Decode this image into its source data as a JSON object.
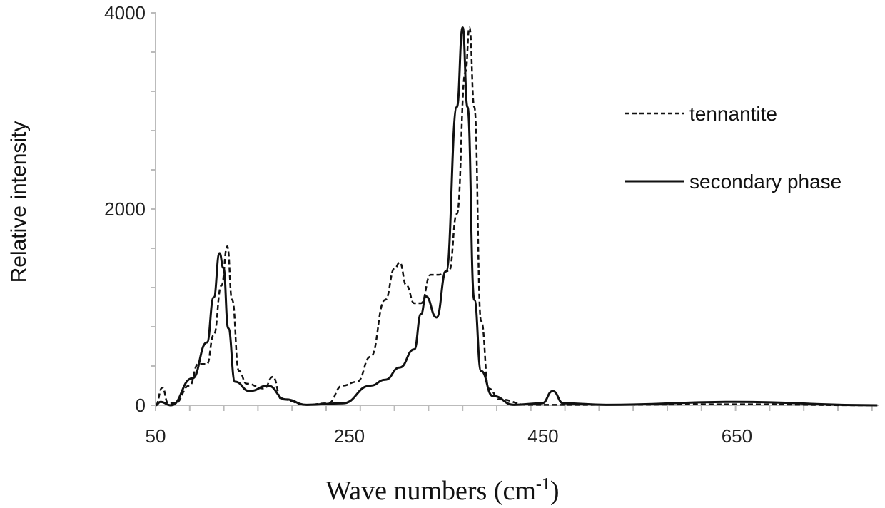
{
  "chart_data": {
    "type": "line",
    "title": "",
    "xlabel": "Wave numbers (cm",
    "xlabel_sup": "-1",
    "xlabel_close": ")",
    "ylabel": "Relative intensity",
    "xlim": [
      50,
      800
    ],
    "ylim": [
      0,
      4000
    ],
    "xticks": [
      50,
      250,
      450,
      650
    ],
    "yticks": [
      0,
      2000,
      4000
    ],
    "legend_position": "right",
    "grid": false,
    "series": [
      {
        "name": "tennantite",
        "style": "dashed",
        "points": [
          [
            50,
            0
          ],
          [
            57,
            180
          ],
          [
            63,
            20
          ],
          [
            70,
            20
          ],
          [
            85,
            200
          ],
          [
            94,
            420
          ],
          [
            103,
            420
          ],
          [
            110,
            715
          ],
          [
            118,
            1220
          ],
          [
            124,
            1620
          ],
          [
            129,
            1075
          ],
          [
            136,
            350
          ],
          [
            144,
            220
          ],
          [
            162,
            170
          ],
          [
            171,
            290
          ],
          [
            180,
            60
          ],
          [
            206,
            5
          ],
          [
            228,
            20
          ],
          [
            243,
            200
          ],
          [
            258,
            240
          ],
          [
            272,
            495
          ],
          [
            287,
            1075
          ],
          [
            297,
            1400
          ],
          [
            302,
            1455
          ],
          [
            309,
            1220
          ],
          [
            317,
            1040
          ],
          [
            324,
            1040
          ],
          [
            334,
            1330
          ],
          [
            342,
            1330
          ],
          [
            353,
            1370
          ],
          [
            361,
            1950
          ],
          [
            370,
            3400
          ],
          [
            374,
            3850
          ],
          [
            379,
            3040
          ],
          [
            386,
            860
          ],
          [
            394,
            170
          ],
          [
            405,
            60
          ],
          [
            434,
            5
          ],
          [
            500,
            5
          ],
          [
            650,
            10
          ],
          [
            795,
            0
          ]
        ]
      },
      {
        "name": "secondary phase",
        "style": "solid",
        "points": [
          [
            50,
            0
          ],
          [
            55,
            35
          ],
          [
            66,
            0
          ],
          [
            88,
            275
          ],
          [
            103,
            640
          ],
          [
            110,
            1100
          ],
          [
            116,
            1550
          ],
          [
            120,
            1400
          ],
          [
            125,
            785
          ],
          [
            132,
            240
          ],
          [
            147,
            145
          ],
          [
            166,
            200
          ],
          [
            184,
            60
          ],
          [
            206,
            5
          ],
          [
            243,
            20
          ],
          [
            272,
            200
          ],
          [
            287,
            260
          ],
          [
            302,
            385
          ],
          [
            317,
            570
          ],
          [
            324,
            930
          ],
          [
            329,
            1110
          ],
          [
            340,
            895
          ],
          [
            350,
            1370
          ],
          [
            361,
            3040
          ],
          [
            367,
            3850
          ],
          [
            372,
            3040
          ],
          [
            379,
            1075
          ],
          [
            386,
            350
          ],
          [
            398,
            95
          ],
          [
            420,
            5
          ],
          [
            449,
            20
          ],
          [
            460,
            145
          ],
          [
            471,
            20
          ],
          [
            515,
            5
          ],
          [
            648,
            35
          ],
          [
            795,
            0
          ]
        ]
      }
    ]
  }
}
